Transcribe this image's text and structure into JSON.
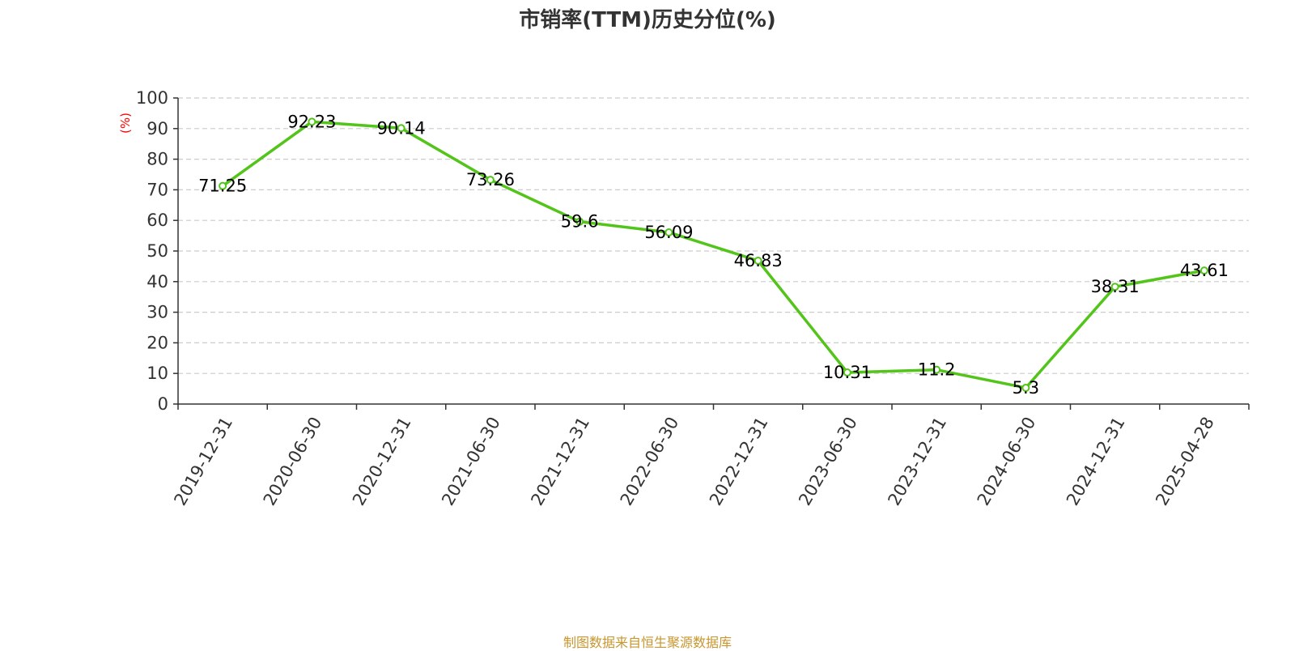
{
  "chart_data": {
    "type": "line",
    "title": "市销率(TTM)历史分位(%)",
    "ylabel": "(%)",
    "ylim": [
      0,
      100
    ],
    "yticks": [
      0,
      10,
      20,
      30,
      40,
      50,
      60,
      70,
      80,
      90,
      100
    ],
    "grid": true,
    "categories": [
      "2019-12-31",
      "2020-06-30",
      "2020-12-31",
      "2021-06-30",
      "2021-12-31",
      "2022-06-30",
      "2022-12-31",
      "2023-06-30",
      "2023-12-31",
      "2024-06-30",
      "2024-12-31",
      "2025-04-28"
    ],
    "values": [
      71.25,
      92.23,
      90.14,
      73.26,
      59.6,
      56.09,
      46.83,
      10.31,
      11.2,
      5.3,
      38.31,
      43.61
    ],
    "line_color": "#52c41a"
  },
  "source": "制图数据来自恒生聚源数据库"
}
